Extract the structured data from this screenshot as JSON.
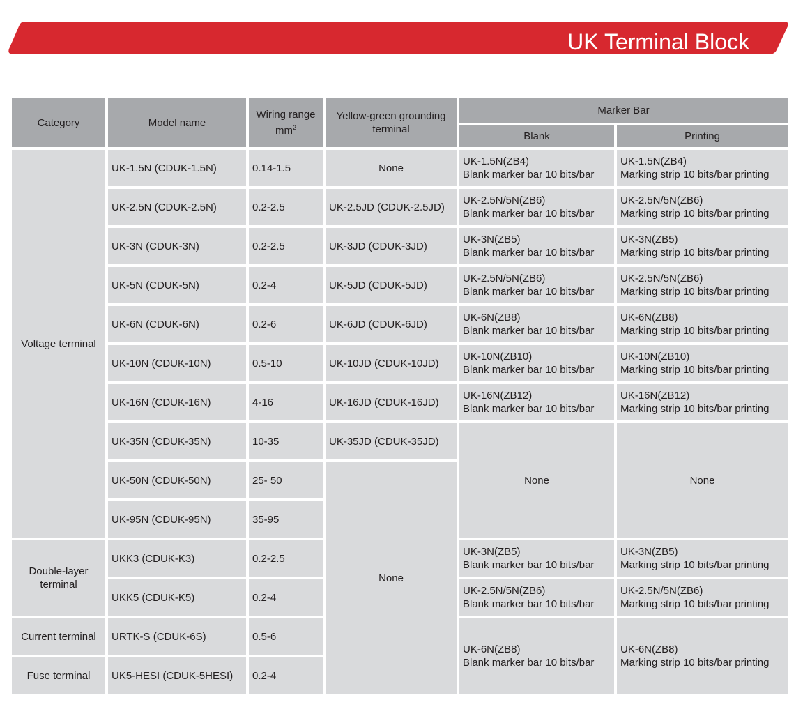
{
  "header": {
    "title": "UK Terminal Block"
  },
  "table": {
    "headers": {
      "category": "Category",
      "model": "Model name",
      "wiring": "Wiring range",
      "wiring_unit": "mm",
      "wiring_unit_sup": "2",
      "grounding": "Yellow-green grounding terminal",
      "marker_bar": "Marker Bar",
      "blank": "Blank",
      "printing": "Printing"
    },
    "category": [
      "Voltage terminal",
      "Double-layer terminal",
      "Current terminal",
      "Fuse terminal"
    ],
    "model": [
      "UK-1.5N (CDUK-1.5N)",
      "UK-2.5N (CDUK-2.5N)",
      "UK-3N (CDUK-3N)",
      "UK-5N (CDUK-5N)",
      "UK-6N (CDUK-6N)",
      "UK-10N (CDUK-10N)",
      "UK-16N (CDUK-16N)",
      "UK-35N (CDUK-35N)",
      "UK-50N (CDUK-50N)",
      "UK-95N (CDUK-95N)",
      "UKK3 (CDUK-K3)",
      "UKK5 (CDUK-K5)",
      "URTK-S (CDUK-6S)",
      "UK5-HESI (CDUK-5HESI)"
    ],
    "wiring": [
      "0.14-1.5",
      "0.2-2.5",
      "0.2-2.5",
      "0.2-4",
      "0.2-6",
      "0.5-10",
      "4-16",
      "10-35",
      "25- 50",
      "35-95",
      "0.2-2.5",
      "0.2-4",
      "0.5-6",
      "0.2-4"
    ],
    "grounding": [
      "None",
      "UK-2.5JD (CDUK-2.5JD)",
      "UK-3JD (CDUK-3JD)",
      "UK-5JD (CDUK-5JD)",
      "UK-6JD (CDUK-6JD)",
      "UK-10JD (CDUK-10JD)",
      "UK-16JD (CDUK-16JD)",
      "UK-35JD (CDUK-35JD)",
      "None"
    ],
    "blank": [
      [
        "UK-1.5N(ZB4)",
        "Blank marker bar 10 bits/bar"
      ],
      [
        "UK-2.5N/5N(ZB6)",
        "Blank marker bar 10 bits/bar"
      ],
      [
        "UK-3N(ZB5)",
        "Blank marker bar 10 bits/bar"
      ],
      [
        "UK-2.5N/5N(ZB6)",
        "Blank marker bar 10 bits/bar"
      ],
      [
        "UK-6N(ZB8)",
        "Blank marker bar 10 bits/bar"
      ],
      [
        "UK-10N(ZB10)",
        "Blank marker bar 10 bits/bar"
      ],
      [
        "UK-16N(ZB12)",
        "Blank marker bar 10 bits/bar"
      ],
      [
        "None"
      ],
      [
        "UK-3N(ZB5)",
        "Blank marker bar 10 bits/bar"
      ],
      [
        "UK-2.5N/5N(ZB6)",
        "Blank marker bar 10 bits/bar"
      ],
      [
        "UK-6N(ZB8)",
        "Blank marker bar 10 bits/bar"
      ]
    ],
    "printing": [
      [
        "UK-1.5N(ZB4)",
        "Marking strip 10 bits/bar printing"
      ],
      [
        "UK-2.5N/5N(ZB6)",
        "Marking strip 10 bits/bar printing"
      ],
      [
        "UK-3N(ZB5)",
        "Marking strip 10 bits/bar printing"
      ],
      [
        "UK-2.5N/5N(ZB6)",
        "Marking strip 10 bits/bar printing"
      ],
      [
        "UK-6N(ZB8)",
        "Marking strip 10 bits/bar printing"
      ],
      [
        "UK-10N(ZB10)",
        "Marking strip 10 bits/bar printing"
      ],
      [
        "UK-16N(ZB12)",
        "Marking strip 10 bits/bar printing"
      ],
      [
        "None"
      ],
      [
        "UK-3N(ZB5)",
        "Marking strip 10 bits/bar printing"
      ],
      [
        "UK-2.5N/5N(ZB6)",
        "Marking strip 10 bits/bar printing"
      ],
      [
        "UK-6N(ZB8)",
        "Marking strip 10 bits/bar printing"
      ]
    ]
  }
}
